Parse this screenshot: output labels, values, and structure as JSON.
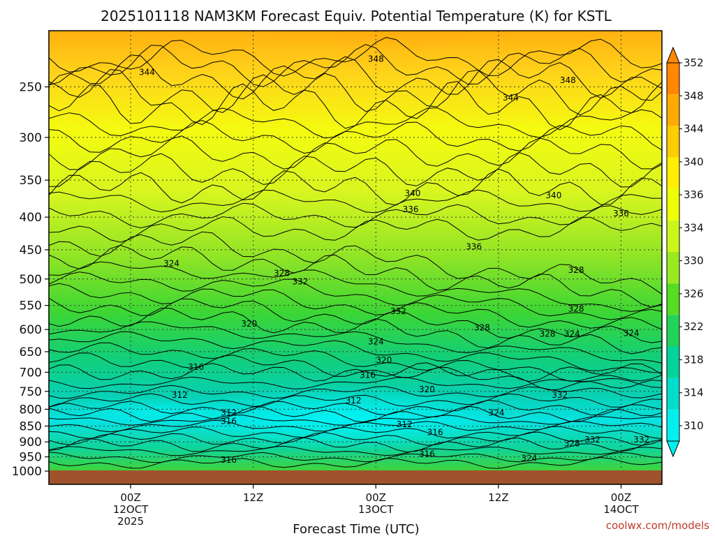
{
  "chart_data": {
    "type": "heatmap",
    "title": "2025101118 NAM3KM Forecast Equiv. Potential Temperature (K) for KSTL",
    "xlabel": "Forecast Time (UTC)",
    "credit": "coolwx.com/models",
    "y_axis": {
      "scale": "pressure",
      "range": [
        1000,
        200
      ],
      "ticks": [
        250,
        300,
        350,
        400,
        450,
        500,
        550,
        600,
        650,
        700,
        750,
        800,
        850,
        900,
        950,
        1000
      ]
    },
    "x_axis": {
      "range_hours": [
        -4,
        26
      ],
      "ticks": [
        {
          "hour": 0,
          "lines": [
            "00Z",
            "12OCT",
            "2025"
          ]
        },
        {
          "hour": 6,
          "lines": [
            "12Z"
          ]
        },
        {
          "hour": 12,
          "lines": [
            "00Z",
            "13OCT"
          ]
        },
        {
          "hour": 18,
          "lines": [
            "12Z"
          ]
        },
        {
          "hour": 24,
          "lines": [
            "00Z",
            "14OCT"
          ]
        }
      ]
    },
    "colorbar": {
      "labels": [
        310,
        314,
        318,
        322,
        326,
        330,
        334,
        336,
        340,
        344,
        348,
        352
      ],
      "colors": [
        "#00f0f0",
        "#00ddcc",
        "#00d49a",
        "#22d25a",
        "#55dd22",
        "#99ea22",
        "#ccf51c",
        "#eeff00",
        "#ffee00",
        "#ffcc00",
        "#ffaa00",
        "#ff8800"
      ]
    },
    "contour_labels": [
      {
        "v": "348",
        "h": 12.0,
        "p": 226
      },
      {
        "v": "344",
        "h": 0.8,
        "p": 237
      },
      {
        "v": "348",
        "h": 21.4,
        "p": 244
      },
      {
        "v": "344",
        "h": 18.6,
        "p": 260
      },
      {
        "v": "340",
        "h": 13.8,
        "p": 367
      },
      {
        "v": "336",
        "h": 13.7,
        "p": 389
      },
      {
        "v": "340",
        "h": 20.7,
        "p": 370
      },
      {
        "v": "336",
        "h": 24.0,
        "p": 395
      },
      {
        "v": "336",
        "h": 16.8,
        "p": 445
      },
      {
        "v": "328",
        "h": 21.8,
        "p": 484
      },
      {
        "v": "324",
        "h": 2.0,
        "p": 473
      },
      {
        "v": "328",
        "h": 7.4,
        "p": 490
      },
      {
        "v": "332",
        "h": 8.3,
        "p": 505
      },
      {
        "v": "332",
        "h": 13.1,
        "p": 562
      },
      {
        "v": "328",
        "h": 21.8,
        "p": 557
      },
      {
        "v": "328",
        "h": 17.2,
        "p": 596
      },
      {
        "v": "320",
        "h": 5.8,
        "p": 588
      },
      {
        "v": "328",
        "h": 20.4,
        "p": 610
      },
      {
        "v": "324",
        "h": 21.6,
        "p": 610
      },
      {
        "v": "324",
        "h": 24.5,
        "p": 608
      },
      {
        "v": "324",
        "h": 12.0,
        "p": 627
      },
      {
        "v": "320",
        "h": 12.4,
        "p": 670
      },
      {
        "v": "316",
        "h": 3.2,
        "p": 687
      },
      {
        "v": "316",
        "h": 11.6,
        "p": 707
      },
      {
        "v": "320",
        "h": 14.5,
        "p": 745
      },
      {
        "v": "312",
        "h": 2.4,
        "p": 760
      },
      {
        "v": "312",
        "h": 10.9,
        "p": 775
      },
      {
        "v": "332",
        "h": 21.0,
        "p": 760
      },
      {
        "v": "312",
        "h": 4.8,
        "p": 810
      },
      {
        "v": "316",
        "h": 4.8,
        "p": 835
      },
      {
        "v": "324",
        "h": 17.9,
        "p": 810
      },
      {
        "v": "312",
        "h": 13.4,
        "p": 845
      },
      {
        "v": "316",
        "h": 14.9,
        "p": 870
      },
      {
        "v": "332",
        "h": 22.6,
        "p": 893
      },
      {
        "v": "332",
        "h": 25.0,
        "p": 893
      },
      {
        "v": "328",
        "h": 21.6,
        "p": 905
      },
      {
        "v": "316",
        "h": 14.5,
        "p": 940
      },
      {
        "v": "324",
        "h": 19.5,
        "p": 955
      },
      {
        "v": "316",
        "h": 4.8,
        "p": 960
      }
    ]
  }
}
